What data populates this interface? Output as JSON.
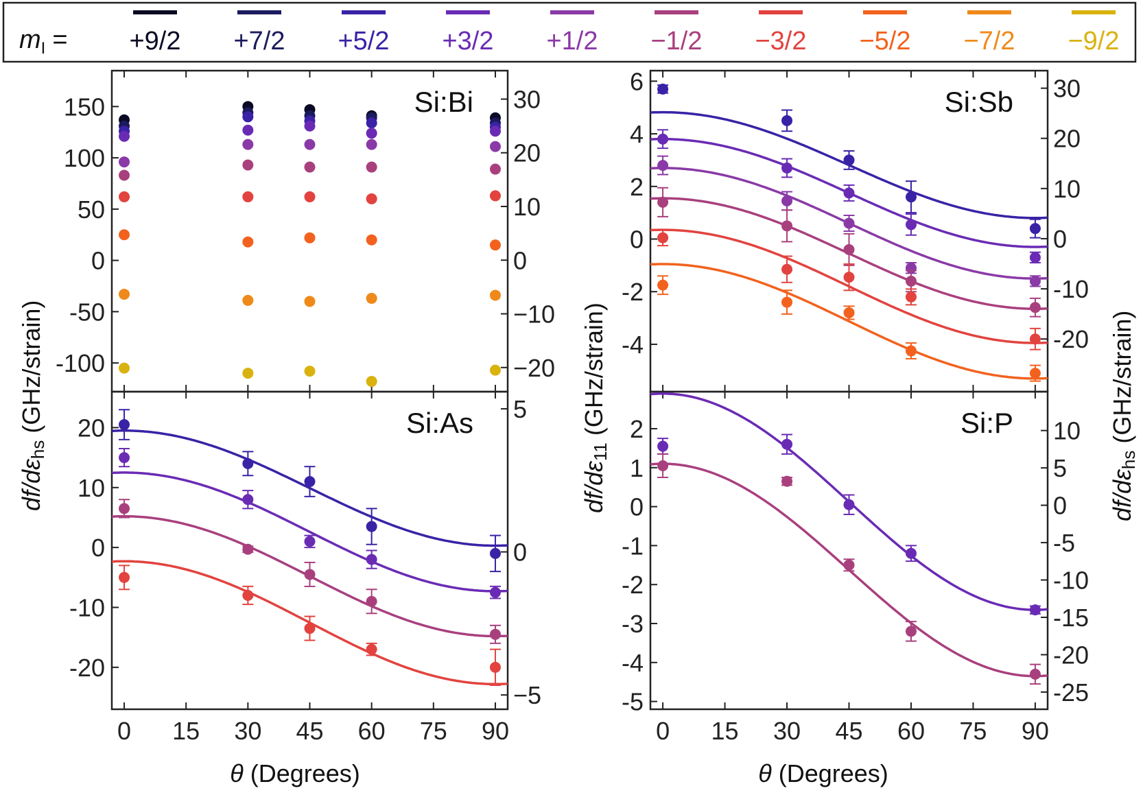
{
  "legend": {
    "title": "m",
    "title_sub": "I",
    "title_suffix": "=",
    "entries": [
      {
        "label": "+9/2",
        "color": "#0b0a24"
      },
      {
        "label": "+7/2",
        "color": "#1c1a5e"
      },
      {
        "label": "+5/2",
        "color": "#3a22a6"
      },
      {
        "label": "+3/2",
        "color": "#6a2bb4"
      },
      {
        "label": "+1/2",
        "color": "#8a3aa6"
      },
      {
        "label": "−1/2",
        "color": "#a9407e"
      },
      {
        "label": "−3/2",
        "color": "#e2433f"
      },
      {
        "label": "−5/2",
        "color": "#f2621e"
      },
      {
        "label": "−7/2",
        "color": "#ef8a1a"
      },
      {
        "label": "−9/2",
        "color": "#d9b20e"
      }
    ]
  },
  "axis_labels": {
    "left_y_main": "df/dε",
    "left_y_sub": "hs",
    "left_y_unit": " (GHz/strain)",
    "mid_y_main": "df/dε",
    "mid_y_sub": "11",
    "mid_y_unit": " (GHz/strain)",
    "right_y_main": "df/dε",
    "right_y_sub": "hs",
    "right_y_unit": " (GHz/strain)",
    "x_theta": "θ",
    "x_unit": " (Degrees)"
  },
  "chart_data": [
    {
      "type": "scatter",
      "title": "Si:Bi",
      "xlim": [
        -3,
        93
      ],
      "ylim": [
        -128,
        185
      ],
      "yticks": [
        -100,
        -50,
        0,
        50,
        100,
        150
      ],
      "ytick_labels": [
        "-100",
        "-50",
        "0",
        "50",
        "100",
        "150"
      ],
      "right_ylim": [
        -24.5,
        35.3
      ],
      "right_yticks": [
        -20,
        -10,
        0,
        10,
        20,
        30
      ],
      "right_ytick_labels": [
        "−20",
        "−10",
        "0",
        "10",
        "20",
        "30"
      ],
      "x": [
        0,
        30,
        45,
        60,
        90
      ],
      "series": [
        {
          "color_index": 0,
          "values": [
            137,
            150,
            147,
            141,
            139
          ]
        },
        {
          "color_index": 1,
          "values": [
            131,
            144,
            141,
            139,
            134
          ]
        },
        {
          "color_index": 2,
          "values": [
            126,
            140,
            136,
            134,
            130
          ]
        },
        {
          "color_index": 3,
          "values": [
            121,
            127,
            131,
            124,
            126
          ]
        },
        {
          "color_index": 4,
          "values": [
            96,
            113,
            113,
            113,
            111
          ]
        },
        {
          "color_index": 5,
          "values": [
            83,
            93,
            91,
            91,
            89
          ]
        },
        {
          "color_index": 6,
          "values": [
            62,
            62,
            62,
            60,
            63
          ]
        },
        {
          "color_index": 7,
          "values": [
            25,
            18,
            22,
            20,
            15
          ]
        },
        {
          "color_index": 8,
          "values": [
            -33,
            -39,
            -40,
            -37,
            -34
          ]
        },
        {
          "color_index": 9,
          "values": [
            -105,
            -110,
            -108,
            -118,
            -107
          ]
        }
      ]
    },
    {
      "type": "scatter",
      "title": "Si:Sb",
      "xlim": [
        -3,
        93
      ],
      "ylim": [
        -5.8,
        6.4
      ],
      "yticks": [
        -4,
        -2,
        0,
        2,
        4,
        6
      ],
      "ytick_labels": [
        "-4",
        "-2",
        "0",
        "2",
        "4",
        "6"
      ],
      "right_ylim": [
        -30.5,
        33.5
      ],
      "right_yticks": [
        -20,
        -10,
        0,
        10,
        20,
        30
      ],
      "right_ytick_labels": [
        "-20",
        "-10",
        "0",
        "10",
        "20",
        "30"
      ],
      "x": [
        0,
        30,
        45,
        60,
        90
      ],
      "series": [
        {
          "color_index": 2,
          "values": [
            5.7,
            4.5,
            3.0,
            1.6,
            0.4
          ],
          "errors": [
            0.15,
            0.4,
            0.35,
            0.6,
            0.35
          ],
          "fit": {
            "A": 4.82,
            "B": 0.8
          }
        },
        {
          "color_index": 3,
          "values": [
            3.8,
            2.7,
            1.75,
            0.55,
            -0.7
          ],
          "errors": [
            0.35,
            0.35,
            0.3,
            0.4,
            0.2
          ],
          "fit": {
            "A": 3.8,
            "B": -0.3
          }
        },
        {
          "color_index": 4,
          "values": [
            2.8,
            1.45,
            0.6,
            -1.1,
            -1.6
          ],
          "errors": [
            0.35,
            0.35,
            0.3,
            0.2,
            0.2
          ],
          "fit": {
            "A": 2.7,
            "B": -1.5
          }
        },
        {
          "color_index": 5,
          "values": [
            1.4,
            0.5,
            -0.4,
            -1.6,
            -2.6
          ],
          "errors": [
            0.55,
            0.6,
            0.6,
            0.4,
            0.35
          ],
          "fit": {
            "A": 1.55,
            "B": -2.65
          }
        },
        {
          "color_index": 6,
          "values": [
            0.05,
            -1.15,
            -1.45,
            -2.2,
            -3.8
          ],
          "errors": [
            0.3,
            0.5,
            0.5,
            0.3,
            0.4
          ],
          "fit": {
            "A": 0.35,
            "B": -3.95
          }
        },
        {
          "color_index": 7,
          "values": [
            -1.75,
            -2.4,
            -2.8,
            -4.25,
            -5.1
          ],
          "errors": [
            0.35,
            0.45,
            0.25,
            0.3,
            0.3
          ],
          "fit": {
            "A": -0.95,
            "B": -5.3
          }
        }
      ]
    },
    {
      "type": "scatter",
      "title": "Si:As",
      "xlim": [
        -3,
        93
      ],
      "ylim": [
        -27,
        26
      ],
      "yticks": [
        -20,
        -10,
        0,
        10,
        20
      ],
      "ytick_labels": [
        "-20",
        "-10",
        "0",
        "10",
        "20"
      ],
      "right_ylim": [
        -5.5,
        5.6
      ],
      "right_yticks": [
        -5,
        0,
        5
      ],
      "right_ytick_labels": [
        "−5",
        "0",
        "5"
      ],
      "x": [
        0,
        30,
        45,
        60,
        90
      ],
      "series": [
        {
          "color_index": 2,
          "values": [
            20.5,
            14,
            11,
            3.5,
            -1
          ],
          "errors": [
            2.5,
            2,
            2.5,
            3,
            3
          ],
          "fit": {
            "A": 19.5,
            "B": 0.3
          }
        },
        {
          "color_index": 3,
          "values": [
            15,
            8,
            1,
            -2,
            -7.5
          ],
          "errors": [
            1.5,
            1.5,
            1,
            1.5,
            1
          ],
          "fit": {
            "A": 12.5,
            "B": -7.3
          }
        },
        {
          "color_index": 5,
          "values": [
            6.5,
            -0.3,
            -4.5,
            -9,
            -14.5
          ],
          "errors": [
            1.5,
            0.5,
            2,
            2,
            1.5
          ],
          "fit": {
            "A": 5.2,
            "B": -14.8
          }
        },
        {
          "color_index": 6,
          "values": [
            -5,
            -8,
            -13.5,
            -17,
            -20
          ],
          "errors": [
            2,
            1.5,
            2,
            1,
            3
          ],
          "fit": {
            "A": -2.3,
            "B": -22.8
          }
        }
      ]
    },
    {
      "type": "scatter",
      "title": "Si:P",
      "xlim": [
        -3,
        93
      ],
      "ylim": [
        -5.2,
        2.95
      ],
      "yticks": [
        -5,
        -4,
        -3,
        -2,
        -1,
        0,
        1,
        2
      ],
      "ytick_labels": [
        "-5",
        "-4",
        "-3",
        "-2",
        "-1",
        "0",
        "1",
        "2"
      ],
      "right_ylim": [
        -27.3,
        15.2
      ],
      "right_yticks": [
        -25,
        -20,
        -15,
        -10,
        -5,
        0,
        5,
        10
      ],
      "right_ytick_labels": [
        "-25",
        "-20",
        "-15",
        "-10",
        "-5",
        "0",
        "5",
        "10"
      ],
      "x": [
        0,
        30,
        45,
        60,
        90
      ],
      "series": [
        {
          "color_index": 3,
          "values": [
            1.55,
            1.6,
            0.05,
            -1.2,
            -2.65
          ],
          "errors": [
            0.2,
            0.25,
            0.25,
            0.2,
            0.1
          ],
          "fit": {
            "A": 2.9,
            "B": -2.65
          }
        },
        {
          "color_index": 5,
          "values": [
            1.05,
            0.65,
            -1.5,
            -3.2,
            -4.3
          ],
          "errors": [
            0.3,
            0.1,
            0.15,
            0.25,
            0.25
          ],
          "fit": {
            "A": 1.1,
            "B": -4.35
          }
        }
      ]
    }
  ],
  "x_ticks": [
    0,
    15,
    30,
    45,
    60,
    75,
    90
  ],
  "x_tick_labels": [
    "0",
    "15",
    "30",
    "45",
    "60",
    "75",
    "90"
  ]
}
